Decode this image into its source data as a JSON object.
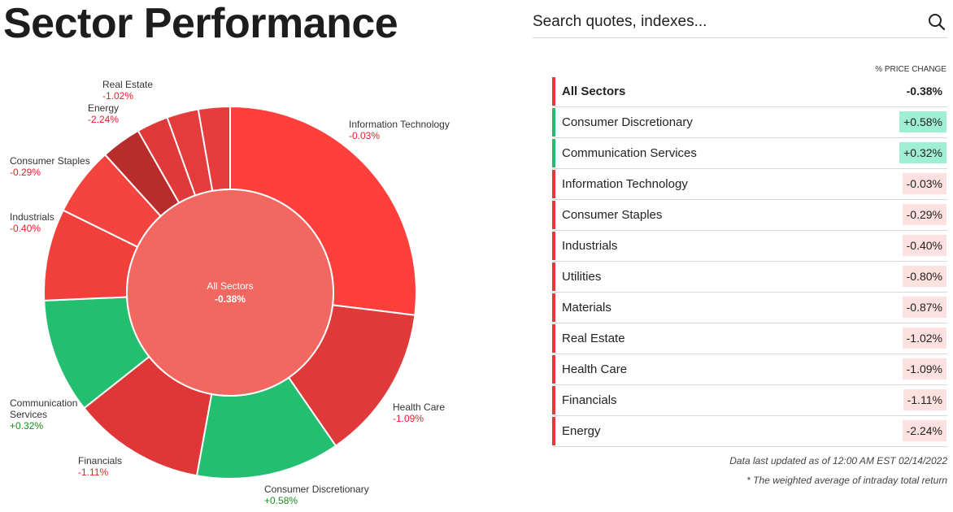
{
  "page": {
    "title": "Sector Performance"
  },
  "search": {
    "placeholder": "Search quotes, indexes..."
  },
  "table": {
    "column_header": "% PRICE CHANGE",
    "rows": [
      {
        "name": "All Sectors",
        "value": "-0.38%",
        "change": -0.38
      },
      {
        "name": "Consumer Discretionary",
        "value": "+0.58%",
        "change": 0.58
      },
      {
        "name": "Communication Services",
        "value": "+0.32%",
        "change": 0.32
      },
      {
        "name": "Information Technology",
        "value": "-0.03%",
        "change": -0.03
      },
      {
        "name": "Consumer Staples",
        "value": "-0.29%",
        "change": -0.29
      },
      {
        "name": "Industrials",
        "value": "-0.40%",
        "change": -0.4
      },
      {
        "name": "Utilities",
        "value": "-0.80%",
        "change": -0.8
      },
      {
        "name": "Materials",
        "value": "-0.87%",
        "change": -0.87
      },
      {
        "name": "Real Estate",
        "value": "-1.02%",
        "change": -1.02
      },
      {
        "name": "Health Care",
        "value": "-1.09%",
        "change": -1.09
      },
      {
        "name": "Financials",
        "value": "-1.11%",
        "change": -1.11
      },
      {
        "name": "Energy",
        "value": "-2.24%",
        "change": -2.24
      }
    ]
  },
  "footer": {
    "updated": "Data last updated as of 12:00 AM EST 02/14/2022",
    "note": "* The weighted average of intraday total return"
  },
  "colors": {
    "positive_bar": "#22bb6f",
    "positive_bg": "#9eefd3",
    "negative_bar": "#e23a3a",
    "negative_bg": "#fde0e0",
    "center_fill": "#f26861",
    "label_negative": "#e8202a",
    "label_positive": "#1a8a1a"
  },
  "chart_data": {
    "type": "pie",
    "center": {
      "label": "All Sectors",
      "value": "-0.38%"
    },
    "slices": [
      {
        "name": "Information Technology",
        "value": "-0.03%",
        "change": -0.03,
        "weight": 27.0,
        "labeled": true,
        "color": "#ff3f3b"
      },
      {
        "name": "Health Care",
        "value": "-1.09%",
        "change": -1.09,
        "weight": 13.5,
        "labeled": true,
        "color": "#e0393a"
      },
      {
        "name": "Consumer Discretionary",
        "value": "+0.58%",
        "change": 0.58,
        "weight": 12.5,
        "labeled": true,
        "color": "#23be6f"
      },
      {
        "name": "Financials",
        "value": "-1.11%",
        "change": -1.11,
        "weight": 11.5,
        "labeled": true,
        "color": "#df3737"
      },
      {
        "name": "Communication Services",
        "value": "+0.32%",
        "change": 0.32,
        "weight": 10.0,
        "labeled": true,
        "color": "#23be6f"
      },
      {
        "name": "Industrials",
        "value": "-0.40%",
        "change": -0.4,
        "weight": 8.0,
        "labeled": true,
        "color": "#f1403c"
      },
      {
        "name": "Consumer Staples",
        "value": "-0.29%",
        "change": -0.29,
        "weight": 6.0,
        "labeled": true,
        "color": "#f4443f"
      },
      {
        "name": "Energy",
        "value": "-2.24%",
        "change": -2.24,
        "weight": 3.5,
        "labeled": true,
        "color": "#b92c2c"
      },
      {
        "name": "Real Estate",
        "value": "-1.02%",
        "change": -1.02,
        "weight": 2.75,
        "labeled": true,
        "color": "#e0393a"
      },
      {
        "name": "Materials",
        "value": "-0.87%",
        "change": -0.87,
        "weight": 2.75,
        "labeled": false,
        "color": "#e43b3b"
      },
      {
        "name": "Utilities",
        "value": "-0.80%",
        "change": -0.8,
        "weight": 2.75,
        "labeled": false,
        "color": "#e63c3c"
      }
    ]
  }
}
